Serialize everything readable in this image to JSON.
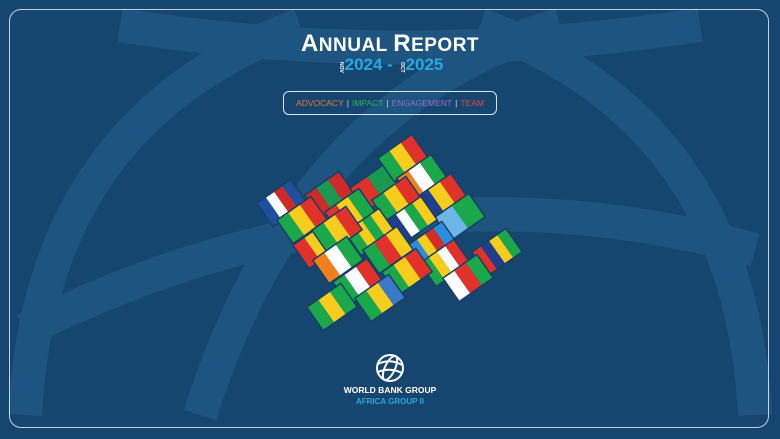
{
  "title": {
    "word1_cap": "A",
    "word1_rest": "NNUAL",
    "word2_cap": "R",
    "word2_rest": "EPORT"
  },
  "period": {
    "start_month": "NOV",
    "start_year": "2024",
    "dash": " - ",
    "end_month": "OCT",
    "end_year": "2025"
  },
  "nav": [
    {
      "label": "ADVOCACY",
      "color": "#e8792b"
    },
    {
      "label": "IMPACT",
      "color": "#2fb24c"
    },
    {
      "label": "ENGAGEMENT",
      "color": "#9b6cc4"
    },
    {
      "label": "TEAM",
      "color": "#e04a3a"
    }
  ],
  "nav_separator": "|",
  "colors": {
    "background": "#164670",
    "accent": "#29a8e0"
  },
  "flags": [
    {
      "country": "cape-verde",
      "stripes": [
        "#1f4fa0",
        "#ffffff",
        "#cf2a2a",
        "#1f4fa0"
      ]
    },
    {
      "country": "mauritania",
      "stripes": [
        "#cf2a2a",
        "#1a9a50",
        "#cf2a2a"
      ]
    },
    {
      "country": "burkina-faso",
      "stripes": [
        "#e0312b",
        "#1a9a50"
      ]
    },
    {
      "country": "mali",
      "stripes": [
        "#1aa84a",
        "#f6cd1d",
        "#e0312b"
      ]
    },
    {
      "country": "niger",
      "stripes": [
        "#f07f1c",
        "#ffffff",
        "#1aa84a"
      ]
    },
    {
      "country": "chad",
      "stripes": [
        "#1f3e8c",
        "#f6cd1d",
        "#e0312b"
      ]
    },
    {
      "country": "djibouti",
      "stripes": [
        "#6db6e8",
        "#1aa84a"
      ]
    },
    {
      "country": "senegal",
      "stripes": [
        "#1aa84a",
        "#f6cd1d",
        "#e0312b"
      ]
    },
    {
      "country": "guinea",
      "stripes": [
        "#e0312b",
        "#f6cd1d",
        "#1aa84a"
      ]
    },
    {
      "country": "cameroon-top",
      "stripes": [
        "#1aa84a",
        "#f6cd1d",
        "#e0312b"
      ]
    },
    {
      "country": "central-african-republic",
      "stripes": [
        "#1f3e8c",
        "#ffffff",
        "#1aa84a",
        "#f6cd1d"
      ]
    },
    {
      "country": "guinea-bissau",
      "stripes": [
        "#e0312b",
        "#f6cd1d",
        "#1aa84a"
      ]
    },
    {
      "country": "togo",
      "stripes": [
        "#1aa84a",
        "#f6cd1d",
        "#1aa84a",
        "#f6cd1d"
      ]
    },
    {
      "country": "dr-congo",
      "stripes": [
        "#2a8ee0",
        "#f6cd1d",
        "#d62b2b",
        "#2a8ee0"
      ]
    },
    {
      "country": "benin",
      "stripes": [
        "#1aa84a",
        "#f6cd1d",
        "#e0312b"
      ]
    },
    {
      "country": "cameroon",
      "stripes": [
        "#1aa84a",
        "#e0312b",
        "#f6cd1d"
      ]
    },
    {
      "country": "mauritius",
      "stripes": [
        "#e0312b",
        "#1f3e8c",
        "#f6cd1d",
        "#1aa84a"
      ]
    },
    {
      "country": "comoros",
      "stripes": [
        "#1aa84a",
        "#f6cd1d",
        "#ffffff",
        "#e0312b"
      ]
    },
    {
      "country": "cote-divoire",
      "stripes": [
        "#f07f1c",
        "#ffffff",
        "#1aa84a"
      ]
    },
    {
      "country": "congo",
      "stripes": [
        "#1aa84a",
        "#f6cd1d",
        "#e0312b"
      ]
    },
    {
      "country": "madagascar",
      "stripes": [
        "#ffffff",
        "#e0312b",
        "#1aa84a"
      ]
    },
    {
      "country": "equatorial-guinea",
      "stripes": [
        "#1aa84a",
        "#ffffff",
        "#e0312b"
      ]
    },
    {
      "country": "gabon",
      "stripes": [
        "#1aa84a",
        "#f6cd1d",
        "#3a78c8"
      ]
    },
    {
      "country": "sao-tome-and-principe",
      "stripes": [
        "#1aa84a",
        "#f6cd1d",
        "#1aa84a"
      ]
    }
  ],
  "org": {
    "name": "WORLD BANK GROUP",
    "group": "AFRICA GROUP II"
  }
}
